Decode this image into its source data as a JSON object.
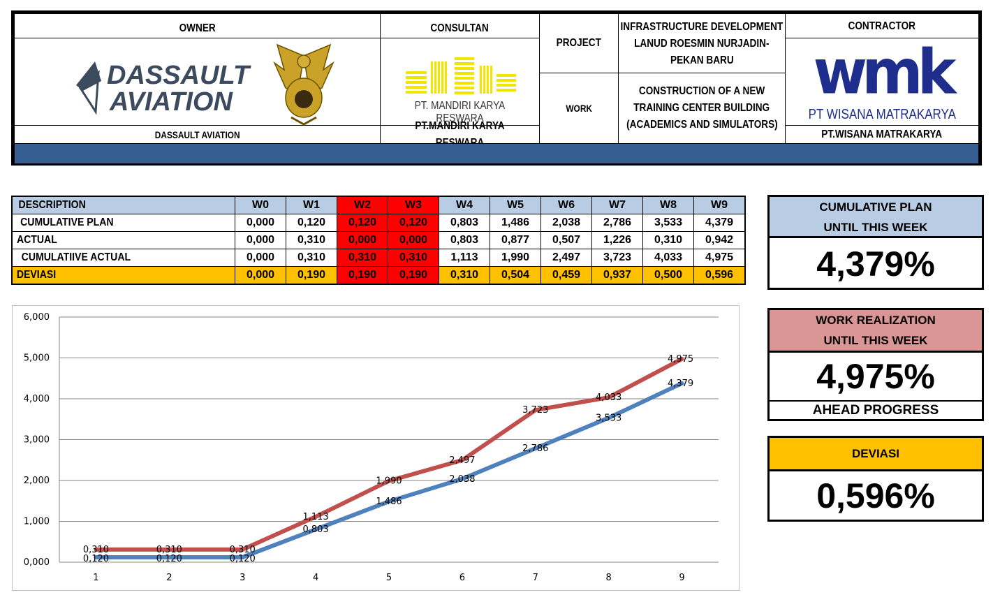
{
  "header": {
    "owner_label": "OWNER",
    "owner_logo_text": [
      "DASSAULT",
      "AVIATION"
    ],
    "owner_name": "DASSAULT AVIATION",
    "consultant_label": "CONSULTAN",
    "consultant_logo_text": "PT. MANDIRI KARYA RESWARA",
    "consultant_name": "PT.MANDIRI KARYA RESWARA",
    "project_label": "PROJECT",
    "project_value": [
      "INFRASTRUCTURE DEVELOPMENT",
      "LANUD ROESMIN NURJADIN-",
      "PEKAN BARU"
    ],
    "work_label": "WORK",
    "work_value": [
      "CONSTRUCTION OF A NEW",
      "TRAINING CENTER BUILDING",
      "(ACADEMICS AND SIMULATORS)"
    ],
    "contractor_label": "CONTRACTOR",
    "contractor_logo_text": "wmk",
    "contractor_logo_sub": "PT WISANA MATRAKARYA",
    "contractor_name": "PT.WISANA MATRAKARYA"
  },
  "table": {
    "columns": [
      "DESCRIPTION",
      "W0",
      "W1",
      "W2",
      "W3",
      "W4",
      "W5",
      "W6",
      "W7",
      "W8",
      "W9"
    ],
    "rows": [
      {
        "label": "CUMULATIVE PLAN",
        "values": [
          "0,000",
          "0,120",
          "0,120",
          "0,120",
          "0,803",
          "1,486",
          "2,038",
          "2,786",
          "3,533",
          "4,379"
        ]
      },
      {
        "label": "ACTUAL",
        "values": [
          "0,000",
          "0,310",
          "0,000",
          "0,000",
          "0,803",
          "0,877",
          "0,507",
          "1,226",
          "0,310",
          "0,942"
        ]
      },
      {
        "label": "CUMULATIIVE ACTUAL",
        "values": [
          "0,000",
          "0,310",
          "0,310",
          "0,310",
          "1,113",
          "1,990",
          "2,497",
          "3,723",
          "4,033",
          "4,975"
        ]
      },
      {
        "label": "DEVIASI",
        "values": [
          "0,000",
          "0,190",
          "0,190",
          "0,190",
          "0,310",
          "0,504",
          "0,459",
          "0,937",
          "0,500",
          "0,596"
        ]
      }
    ],
    "highlight_columns": [
      "W2",
      "W3"
    ],
    "colors": {
      "header": "#B8CCE4",
      "deviasi": "#FFC000",
      "highlight": "#FF0000"
    }
  },
  "summary": {
    "plan": {
      "label": [
        "CUMULATIVE PLAN",
        "UNTIL THIS WEEK"
      ],
      "value": "4,379%",
      "color": "#B8CCE4"
    },
    "realization": {
      "label": [
        "WORK REALIZATION",
        "UNTIL THIS WEEK"
      ],
      "value": "4,975%",
      "footer": "AHEAD PROGRESS",
      "color": "#DA9694"
    },
    "deviasi": {
      "label": "DEVIASI",
      "value": "0,596%",
      "color": "#FFC000"
    }
  },
  "chart_data": {
    "type": "line",
    "x": [
      1,
      2,
      3,
      4,
      5,
      6,
      7,
      8,
      9
    ],
    "ylim": [
      0,
      6
    ],
    "yticks": [
      "0,000",
      "1,000",
      "2,000",
      "3,000",
      "4,000",
      "5,000",
      "6,000"
    ],
    "series": [
      {
        "values": [
          0.12,
          0.12,
          0.12,
          0.803,
          1.486,
          2.038,
          2.786,
          3.533,
          4.379
        ],
        "labels": [
          "0,120",
          "0,120",
          "0,120",
          "0,803",
          "1,486",
          "2,038",
          "2,786",
          "3,533",
          "4,379"
        ],
        "color": "#4F81BD"
      },
      {
        "values": [
          0.31,
          0.31,
          0.31,
          1.113,
          1.99,
          2.497,
          3.723,
          4.033,
          4.975
        ],
        "labels": [
          "0,310",
          "0,310",
          "0,310",
          "1,113",
          "1,990",
          "2,497",
          "3,723",
          "4,033",
          "4,975"
        ],
        "color": "#C0504D"
      }
    ],
    "grid": true
  }
}
